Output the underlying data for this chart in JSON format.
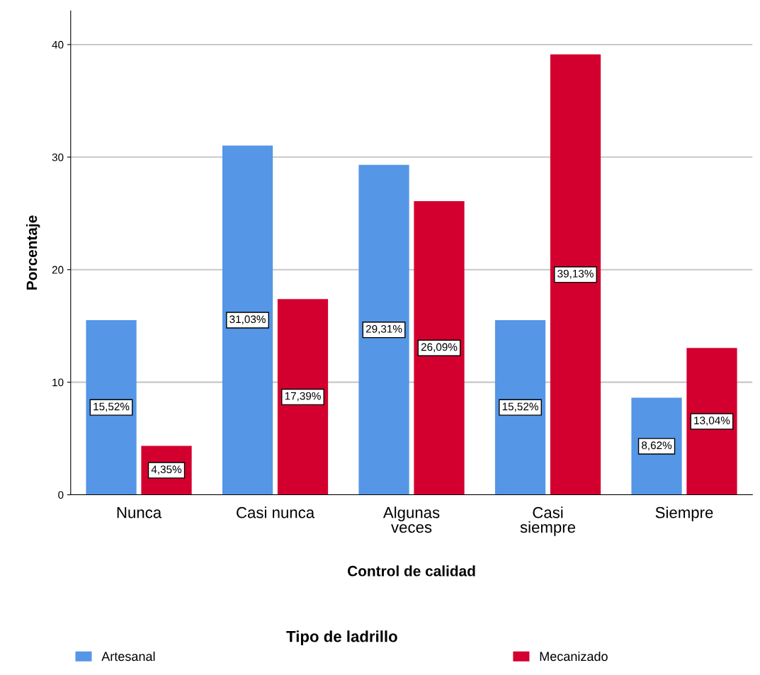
{
  "chart_data": {
    "type": "bar",
    "xlabel": "Control de calidad",
    "ylabel": "Porcentaje",
    "legend_title": "Tipo de ladrillo",
    "categories": [
      "Nunca",
      "Casi nunca",
      "Algunas\nveces",
      "Casi\nsiempre",
      "Siempre"
    ],
    "series": [
      {
        "name": "Artesanal",
        "color": "#5596e6",
        "values": [
          15.52,
          31.03,
          29.31,
          15.52,
          8.62
        ],
        "value_labels": [
          "15,52%",
          "31,03%",
          "29,31%",
          "15,52%",
          "8,62%"
        ]
      },
      {
        "name": "Mecanizado",
        "color": "#d3002f",
        "values": [
          4.35,
          17.39,
          26.09,
          39.13,
          13.04
        ],
        "value_labels": [
          "4,35%",
          "17,39%",
          "26,09%",
          "39,13%",
          "13,04%"
        ]
      }
    ],
    "ylim": [
      0,
      43
    ],
    "yticks": [
      0,
      10,
      20,
      30,
      40
    ],
    "grid": "y",
    "legend": "bottom"
  }
}
